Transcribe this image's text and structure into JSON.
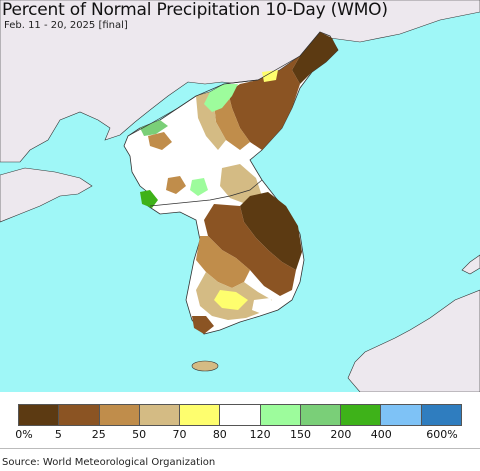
{
  "title": "Percent of Normal Precipitation 10-Day (WMO)",
  "subtitle": "Feb. 11 - 20, 2025 [final]",
  "source": "Source: World Meteorological Organization",
  "colors": {
    "ocean": "#9ff7f7",
    "land_outside": "#ede8ee",
    "border": "#333333"
  },
  "legend": {
    "colors": [
      "#5c3a12",
      "#8b5423",
      "#c08d4b",
      "#d4bb84",
      "#fefe6e",
      "#ffffff",
      "#9dfc9c",
      "#7acf78",
      "#3eb219",
      "#7ec2f6",
      "#2f7dbf"
    ],
    "labels": [
      "0%",
      "5",
      "25",
      "50",
      "70",
      "80",
      "120",
      "150",
      "200",
      "400",
      "600%"
    ]
  }
}
